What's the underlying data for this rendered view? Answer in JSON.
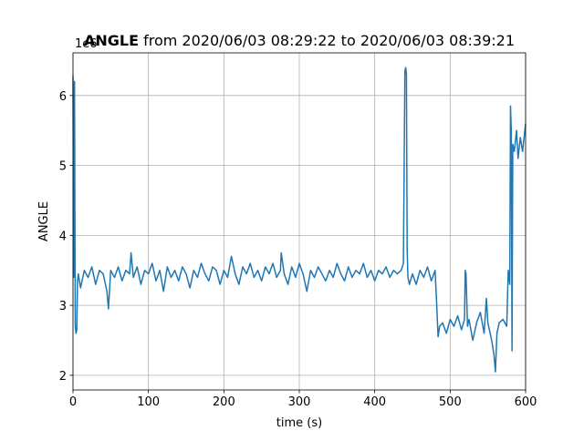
{
  "chart_data": {
    "type": "line",
    "title_bold": "ANGLE",
    "title": "from 2020/06/03 08:29:22 to 2020/06/03 08:39:21",
    "xlabel": "time (s)",
    "ylabel": "ANGLE",
    "y_offset_label": "1e6",
    "xlim": [
      0,
      600
    ],
    "ylim": [
      1.79,
      6.61
    ],
    "xticks": [
      0,
      100,
      200,
      300,
      400,
      500,
      600
    ],
    "yticks": [
      2,
      3,
      4,
      5,
      6
    ],
    "grid": true,
    "x": [
      0,
      1,
      2,
      3,
      4,
      5,
      6,
      7,
      10,
      15,
      20,
      25,
      30,
      35,
      40,
      45,
      47,
      50,
      55,
      60,
      65,
      70,
      75,
      77,
      80,
      85,
      90,
      95,
      100,
      105,
      110,
      115,
      120,
      125,
      130,
      135,
      140,
      145,
      150,
      155,
      160,
      165,
      170,
      175,
      180,
      185,
      190,
      195,
      200,
      205,
      210,
      215,
      220,
      225,
      230,
      235,
      240,
      245,
      250,
      255,
      260,
      265,
      270,
      275,
      276,
      280,
      285,
      290,
      295,
      300,
      305,
      310,
      315,
      320,
      325,
      330,
      335,
      340,
      345,
      350,
      355,
      360,
      365,
      370,
      375,
      380,
      385,
      390,
      395,
      400,
      405,
      410,
      415,
      420,
      425,
      430,
      435,
      438,
      440,
      441,
      442,
      443,
      444,
      446,
      450,
      455,
      460,
      465,
      470,
      475,
      480,
      482,
      484,
      486,
      490,
      495,
      500,
      505,
      510,
      515,
      519,
      520,
      521,
      523,
      525,
      530,
      535,
      540,
      545,
      548,
      550,
      555,
      558,
      560,
      562,
      565,
      570,
      575,
      577,
      579,
      580,
      581,
      582,
      583,
      585,
      588,
      590,
      593,
      596,
      600
    ],
    "series": [
      {
        "name": "ANGLE",
        "color": "#1f77b4",
        "values": [
          6.28,
          3.4,
          6.2,
          2.7,
          2.6,
          2.65,
          3.35,
          3.45,
          3.25,
          3.5,
          3.4,
          3.55,
          3.3,
          3.5,
          3.45,
          3.2,
          2.95,
          3.5,
          3.4,
          3.55,
          3.35,
          3.5,
          3.45,
          3.75,
          3.4,
          3.55,
          3.3,
          3.5,
          3.45,
          3.6,
          3.35,
          3.5,
          3.2,
          3.55,
          3.4,
          3.5,
          3.35,
          3.55,
          3.45,
          3.25,
          3.5,
          3.4,
          3.6,
          3.45,
          3.35,
          3.55,
          3.5,
          3.3,
          3.5,
          3.4,
          3.7,
          3.45,
          3.3,
          3.55,
          3.45,
          3.6,
          3.4,
          3.5,
          3.35,
          3.55,
          3.45,
          3.6,
          3.4,
          3.5,
          3.75,
          3.45,
          3.3,
          3.55,
          3.4,
          3.6,
          3.45,
          3.2,
          3.5,
          3.4,
          3.55,
          3.45,
          3.35,
          3.5,
          3.4,
          3.6,
          3.45,
          3.35,
          3.55,
          3.4,
          3.5,
          3.45,
          3.6,
          3.4,
          3.5,
          3.35,
          3.5,
          3.45,
          3.55,
          3.4,
          3.5,
          3.45,
          3.5,
          3.6,
          6.35,
          6.4,
          6.3,
          3.8,
          3.4,
          3.3,
          3.45,
          3.3,
          3.5,
          3.4,
          3.55,
          3.35,
          3.5,
          3.05,
          2.55,
          2.7,
          2.75,
          2.6,
          2.8,
          2.7,
          2.85,
          2.65,
          2.8,
          3.5,
          3.45,
          2.7,
          2.8,
          2.5,
          2.75,
          2.9,
          2.6,
          3.1,
          2.75,
          2.5,
          2.3,
          2.05,
          2.6,
          2.75,
          2.8,
          2.7,
          3.5,
          3.3,
          5.85,
          5.5,
          2.35,
          5.3,
          5.2,
          5.5,
          5.1,
          5.4,
          5.2,
          5.6
        ]
      }
    ]
  }
}
